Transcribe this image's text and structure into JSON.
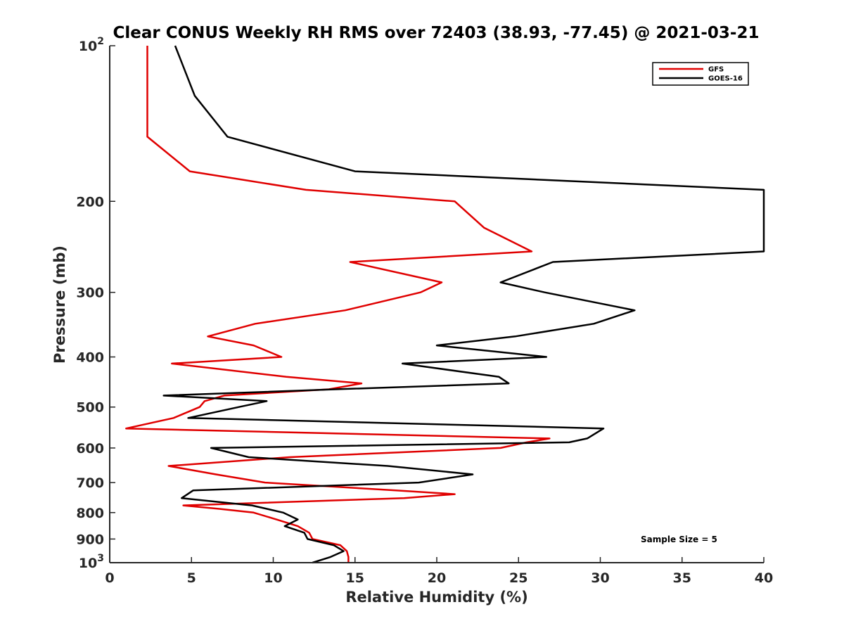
{
  "chart_data": {
    "type": "line",
    "title": "Clear CONUS Weekly RH RMS over 72403 (38.93, -77.45) @ 2021-03-21",
    "xlabel": "Relative Humidity (%)",
    "ylabel": "Pressure (mb)",
    "xlim": [
      0,
      40
    ],
    "ylim": [
      100,
      1000
    ],
    "yscale": "log",
    "y_reversed": true,
    "grid": false,
    "legend_position": "top-right",
    "x_ticks": [
      "0",
      "5",
      "10",
      "15",
      "20",
      "25",
      "30",
      "35",
      "40"
    ],
    "y_ticks": [
      {
        "value": 100,
        "base": "10",
        "exp": "2"
      },
      {
        "value": 200,
        "label": "200"
      },
      {
        "value": 300,
        "label": "300"
      },
      {
        "value": 400,
        "label": "400"
      },
      {
        "value": 500,
        "label": "500"
      },
      {
        "value": 600,
        "label": "600"
      },
      {
        "value": 700,
        "label": "700"
      },
      {
        "value": 800,
        "label": "800"
      },
      {
        "value": 900,
        "label": "900"
      },
      {
        "value": 1000,
        "base": "10",
        "exp": "3"
      }
    ],
    "annotation": "Sample Size = 5",
    "series": [
      {
        "name": "GFS",
        "color": "#e00000",
        "points": [
          [
            2.3,
            100
          ],
          [
            2.3,
            125
          ],
          [
            2.3,
            150
          ],
          [
            4.9,
            175
          ],
          [
            12,
            190
          ],
          [
            21.1,
            200
          ],
          [
            22.9,
            225
          ],
          [
            25.8,
            250
          ],
          [
            14.7,
            262
          ],
          [
            20.3,
            287
          ],
          [
            19,
            300
          ],
          [
            14.4,
            325
          ],
          [
            8.9,
            345
          ],
          [
            6,
            365
          ],
          [
            8.8,
            380
          ],
          [
            10.5,
            400
          ],
          [
            3.8,
            412
          ],
          [
            10.8,
            437
          ],
          [
            15.4,
            450
          ],
          [
            13.4,
            462
          ],
          [
            7,
            475
          ],
          [
            5.8,
            487
          ],
          [
            5.5,
            500
          ],
          [
            3.9,
            525
          ],
          [
            1,
            550
          ],
          [
            26.9,
            575
          ],
          [
            25.5,
            585
          ],
          [
            23.9,
            600
          ],
          [
            11,
            625
          ],
          [
            3.6,
            650
          ],
          [
            6.5,
            675
          ],
          [
            9.5,
            700
          ],
          [
            17.5,
            725
          ],
          [
            21.1,
            737
          ],
          [
            18,
            750
          ],
          [
            4.5,
            775
          ],
          [
            6.7,
            787
          ],
          [
            8.8,
            800
          ],
          [
            10.2,
            825
          ],
          [
            11.5,
            850
          ],
          [
            12.2,
            875
          ],
          [
            12.4,
            900
          ],
          [
            14.1,
            925
          ],
          [
            14.5,
            950
          ],
          [
            14.6,
            975
          ],
          [
            14.6,
            1000
          ]
        ]
      },
      {
        "name": "GOES-16",
        "color": "#000000",
        "points": [
          [
            4,
            100
          ],
          [
            5.2,
            125
          ],
          [
            7.2,
            150
          ],
          [
            15,
            175
          ],
          [
            40,
            190
          ],
          [
            40,
            250
          ],
          [
            27.1,
            262
          ],
          [
            23.9,
            287
          ],
          [
            26.6,
            300
          ],
          [
            32.1,
            325
          ],
          [
            29.6,
            345
          ],
          [
            24.8,
            365
          ],
          [
            20,
            380
          ],
          [
            26.7,
            400
          ],
          [
            17.9,
            412
          ],
          [
            23.8,
            437
          ],
          [
            24.4,
            450
          ],
          [
            13.8,
            462
          ],
          [
            3.3,
            475
          ],
          [
            9.6,
            487
          ],
          [
            7.9,
            500
          ],
          [
            4.8,
            525
          ],
          [
            30.2,
            550
          ],
          [
            29.2,
            575
          ],
          [
            28.1,
            585
          ],
          [
            6.2,
            600
          ],
          [
            8.5,
            625
          ],
          [
            17,
            650
          ],
          [
            22.2,
            675
          ],
          [
            18.9,
            700
          ],
          [
            5.1,
            725
          ],
          [
            4.4,
            750
          ],
          [
            8.7,
            775
          ],
          [
            10.6,
            800
          ],
          [
            11.5,
            825
          ],
          [
            10.7,
            850
          ],
          [
            11.9,
            875
          ],
          [
            12.1,
            900
          ],
          [
            13.7,
            925
          ],
          [
            14.3,
            950
          ],
          [
            13.5,
            975
          ],
          [
            12.4,
            1000
          ]
        ]
      }
    ]
  }
}
